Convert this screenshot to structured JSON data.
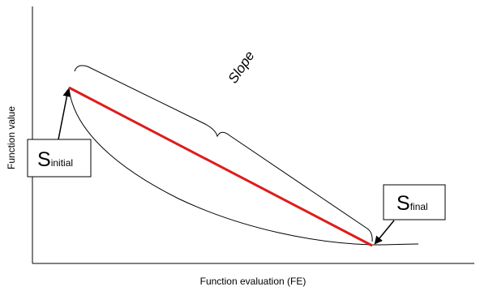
{
  "x_axis_label": "Function evaluation (FE)",
  "y_axis_label": "Function value",
  "slope_label": "Slope",
  "initial_box": {
    "main": "S",
    "sub": "initial"
  },
  "final_box": {
    "main": "S",
    "sub": "final"
  },
  "colors": {
    "slope_line": "#e01b1b",
    "stroke": "#000000"
  }
}
